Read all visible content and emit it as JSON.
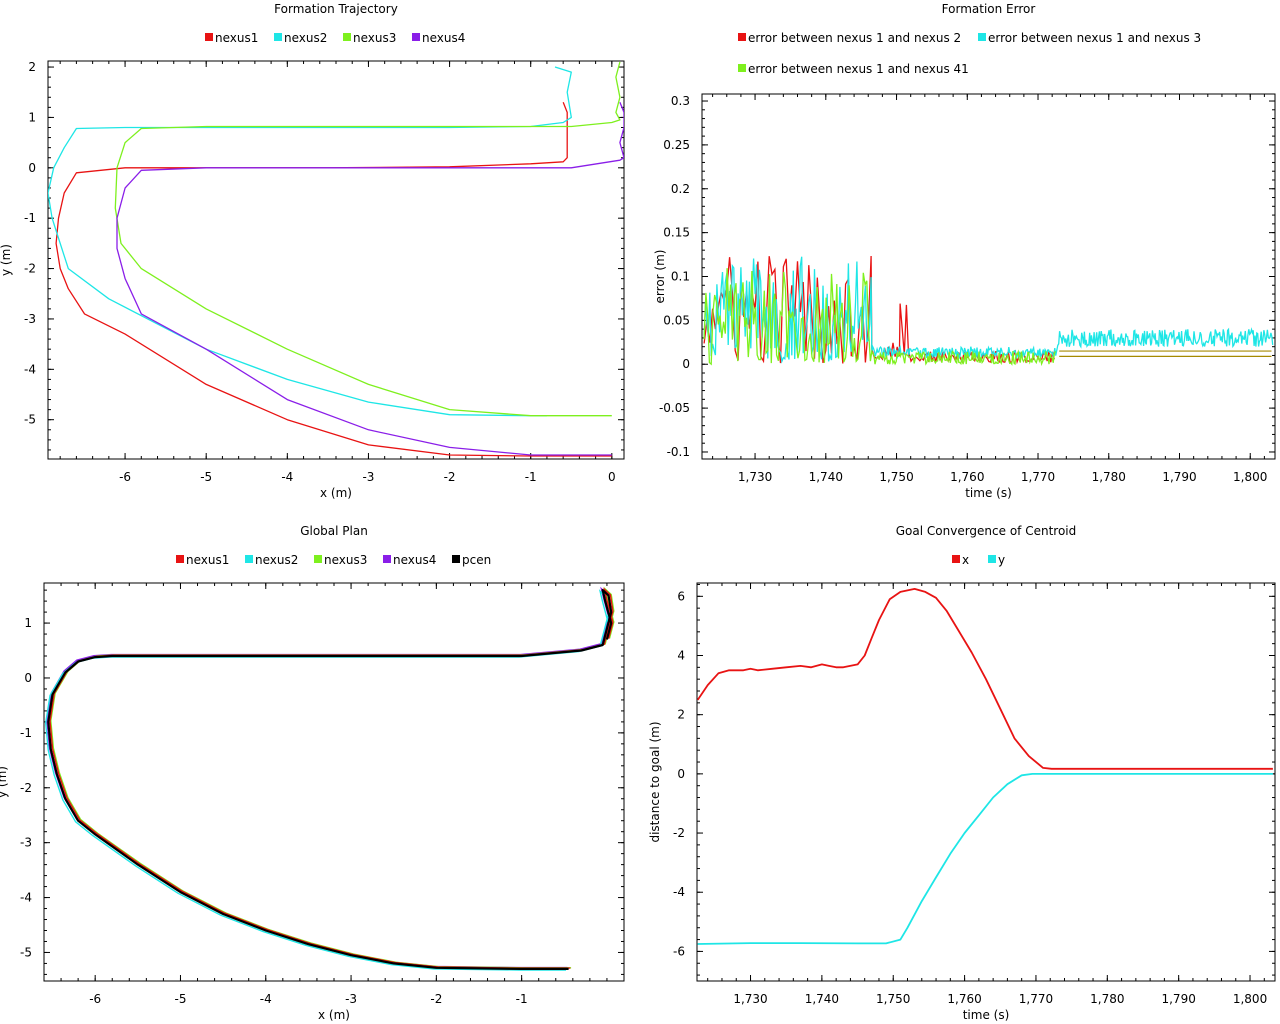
{
  "colors": {
    "nexus1": "#e81313",
    "nexus2": "#1ee6e6",
    "nexus3": "#7ef01e",
    "nexus4": "#8a1ee8",
    "pcen": "#000000",
    "olive": "#a68a00"
  },
  "chart_data": [
    {
      "id": "trajectory",
      "type": "line",
      "title": "Formation Trajectory",
      "xlabel": "x (m)",
      "ylabel": "y (m)",
      "xlim": [
        -6.95,
        0.15
      ],
      "ylim": [
        -5.78,
        2.12
      ],
      "xticks": [
        -6,
        -5,
        -4,
        -3,
        -2,
        -1,
        0
      ],
      "yticks": [
        2,
        1,
        0,
        -1,
        -2,
        -3,
        -4,
        -5
      ],
      "legend_position": "top-center",
      "series": [
        {
          "name": "nexus1",
          "color": "#e81313",
          "x": [
            -0.6,
            -0.55,
            -0.55,
            -0.6,
            -1.0,
            -2.0,
            -3.5,
            -5.0,
            -6.0,
            -6.6,
            -6.75,
            -6.82,
            -6.85,
            -6.8,
            -6.7,
            -6.5,
            -6.0,
            -5.0,
            -4.0,
            -3.0,
            -2.0,
            -1.0,
            0.0
          ],
          "y": [
            1.3,
            1.1,
            0.2,
            0.12,
            0.08,
            0.02,
            0.0,
            0.0,
            0.0,
            -0.1,
            -0.5,
            -1.0,
            -1.5,
            -2.0,
            -2.4,
            -2.9,
            -3.3,
            -4.3,
            -5.0,
            -5.5,
            -5.7,
            -5.72,
            -5.72
          ]
        },
        {
          "name": "nexus2",
          "color": "#1ee6e6",
          "x": [
            -0.7,
            -0.5,
            -0.55,
            -0.5,
            -0.6,
            -1.0,
            -2.0,
            -3.0,
            -4.0,
            -5.0,
            -6.0,
            -6.6,
            -6.75,
            -6.88,
            -6.95,
            -6.9,
            -6.7,
            -6.2,
            -5.0,
            -4.0,
            -3.0,
            -2.0,
            -1.0,
            -0.8
          ],
          "y": [
            2.0,
            1.9,
            1.5,
            1.0,
            0.9,
            0.82,
            0.8,
            0.8,
            0.8,
            0.8,
            0.8,
            0.78,
            0.4,
            0.0,
            -0.5,
            -1.0,
            -2.0,
            -2.6,
            -3.6,
            -4.2,
            -4.65,
            -4.9,
            -4.92,
            -4.92
          ]
        },
        {
          "name": "nexus3",
          "color": "#7ef01e",
          "x": [
            0.1,
            0.05,
            0.1,
            0.05,
            0.1,
            0.0,
            -0.5,
            -1.0,
            -2.0,
            -3.0,
            -4.0,
            -5.0,
            -5.8,
            -6.0,
            -6.1,
            -6.12,
            -6.05,
            -5.8,
            -5.0,
            -4.0,
            -3.0,
            -2.0,
            -1.0,
            0.0
          ],
          "y": [
            2.1,
            1.8,
            1.4,
            1.1,
            0.95,
            0.9,
            0.82,
            0.82,
            0.82,
            0.82,
            0.82,
            0.82,
            0.78,
            0.5,
            0.0,
            -0.8,
            -1.5,
            -2.0,
            -2.8,
            -3.6,
            -4.3,
            -4.8,
            -4.92,
            -4.92
          ]
        },
        {
          "name": "nexus4",
          "color": "#8a1ee8",
          "x": [
            0.1,
            0.15,
            0.15,
            0.1,
            0.15,
            0.1,
            -0.5,
            -1.0,
            -2.0,
            -3.0,
            -4.0,
            -5.0,
            -5.8,
            -6.0,
            -6.1,
            -6.1,
            -6.0,
            -5.8,
            -5.0,
            -4.0,
            -3.0,
            -2.0,
            -1.0,
            0.0
          ],
          "y": [
            1.3,
            1.1,
            0.8,
            0.5,
            0.2,
            0.15,
            0.0,
            0.0,
            0.0,
            0.0,
            0.0,
            0.0,
            -0.05,
            -0.4,
            -1.0,
            -1.6,
            -2.2,
            -2.9,
            -3.6,
            -4.6,
            -5.2,
            -5.55,
            -5.7,
            -5.7
          ]
        }
      ]
    },
    {
      "id": "error",
      "type": "line",
      "title": "Formation Error",
      "xlabel": "time (s)",
      "ylabel": "error (m)",
      "xlim": [
        1722.5,
        1803.5
      ],
      "ylim": [
        -0.108,
        0.308
      ],
      "xticks": [
        1730,
        1740,
        1750,
        1760,
        1770,
        1780,
        1790,
        1800
      ],
      "xtick_labels": [
        "1,730",
        "1,740",
        "1,750",
        "1,760",
        "1,770",
        "1,780",
        "1,790",
        "1,800"
      ],
      "yticks": [
        0.3,
        0.25,
        0.2,
        0.15,
        0.1,
        0.05,
        0,
        -0.05,
        -0.1
      ],
      "ytick_labels": [
        "0.3",
        "0.25",
        "0.2",
        "0.15",
        "0.1",
        "0.05",
        "0",
        "-0.05",
        "-0.1"
      ],
      "legend_position": "top",
      "series": [
        {
          "name": "error between nexus 1 and nexus 2",
          "color": "#e81313",
          "segments": [
            {
              "x_range": [
                1722.8,
                1746.5
              ],
              "low": 0.0,
              "high": 0.128,
              "period": 0.8
            },
            {
              "x_range": [
                1746.5,
                1750.5
              ],
              "low": 0.005,
              "high": 0.025,
              "period": 0.6
            },
            {
              "x_range": [
                1750.5,
                1751.8
              ],
              "low": 0.005,
              "high": 0.085,
              "period": 0.6
            },
            {
              "x_range": [
                1751.8,
                1772.5
              ],
              "low": 0.002,
              "high": 0.015,
              "period": 0.5
            }
          ],
          "tail": {
            "x_range": [
              1773,
              1803
            ],
            "value": 0.015
          }
        },
        {
          "name": "error between nexus 1 and nexus 3",
          "color": "#1ee6e6",
          "segments": [
            {
              "x_range": [
                1722.8,
                1746.5
              ],
              "low": 0.003,
              "high": 0.125,
              "period": 0.4
            },
            {
              "x_range": [
                1746.5,
                1772.5
              ],
              "low": 0.008,
              "high": 0.02,
              "period": 0.25
            },
            {
              "x_range": [
                1772.8,
                1803.2
              ],
              "low": 0.02,
              "high": 0.04,
              "period": 0.25
            }
          ]
        },
        {
          "name": "error between nexus 1 and nexus 41",
          "color": "#7ef01e",
          "segments": [
            {
              "x_range": [
                1722.8,
                1746.5
              ],
              "low": 0.0,
              "high": 0.11,
              "period": 0.5
            },
            {
              "x_range": [
                1746.5,
                1772.5
              ],
              "low": 0.0,
              "high": 0.015,
              "period": 0.3
            }
          ],
          "tail": {
            "x_range": [
              1773,
              1803
            ],
            "value": 0.009
          }
        }
      ]
    },
    {
      "id": "plan",
      "type": "line",
      "title": "Global Plan",
      "xlabel": "x (m)",
      "ylabel": "y (m)",
      "xlim": [
        -6.6,
        0.2
      ],
      "ylim": [
        -5.52,
        1.73
      ],
      "xticks": [
        -6,
        -5,
        -4,
        -3,
        -2,
        -1
      ],
      "yticks": [
        1,
        0,
        -1,
        -2,
        -3,
        -4,
        -5
      ],
      "legend_position": "top-center",
      "series": [
        {
          "name": "nexus1",
          "color": "#e81313"
        },
        {
          "name": "nexus2",
          "color": "#1ee6e6"
        },
        {
          "name": "nexus3",
          "color": "#7ef01e"
        },
        {
          "name": "nexus4",
          "color": "#8a1ee8"
        },
        {
          "name": "pcen",
          "color": "#000000",
          "x": [
            -0.45,
            -1.0,
            -2.0,
            -2.5,
            -3.0,
            -3.5,
            -4.0,
            -4.5,
            -5.0,
            -5.5,
            -6.0,
            -6.2,
            -6.35,
            -6.45,
            -6.52,
            -6.55,
            -6.5,
            -6.35,
            -6.2,
            -6.0,
            -5.8,
            -5.0,
            -4.0,
            -3.0,
            -2.0,
            -1.0,
            -0.3,
            -0.05,
            0.0,
            0.05,
            0.02,
            -0.05,
            -0.02,
            0.05,
            0.0
          ],
          "y": [
            -5.3,
            -5.3,
            -5.28,
            -5.2,
            -5.05,
            -4.85,
            -4.6,
            -4.3,
            -3.9,
            -3.4,
            -2.85,
            -2.6,
            -2.2,
            -1.75,
            -1.3,
            -0.8,
            -0.3,
            0.1,
            0.3,
            0.38,
            0.4,
            0.4,
            0.4,
            0.4,
            0.4,
            0.4,
            0.5,
            0.6,
            0.9,
            1.2,
            1.5,
            1.6,
            1.4,
            1.0,
            0.7
          ]
        }
      ]
    },
    {
      "id": "convergence",
      "type": "line",
      "title": "Goal Convergence of Centroid",
      "xlabel": "time (s)",
      "ylabel": "distance to goal (m)",
      "xlim": [
        1722.5,
        1803.5
      ],
      "ylim": [
        -7.0,
        6.45
      ],
      "xticks": [
        1730,
        1740,
        1750,
        1760,
        1770,
        1780,
        1790,
        1800
      ],
      "xtick_labels": [
        "1,730",
        "1,740",
        "1,750",
        "1,760",
        "1,770",
        "1,780",
        "1,790",
        "1,800"
      ],
      "yticks": [
        6,
        4,
        2,
        0,
        -2,
        -4,
        -6
      ],
      "legend_position": "top-center",
      "series": [
        {
          "name": "x",
          "color": "#e81313",
          "x": [
            1722.6,
            1724,
            1725.5,
            1727,
            1729,
            1730,
            1731,
            1733,
            1735,
            1737,
            1738.5,
            1740,
            1741,
            1742,
            1743,
            1745,
            1746,
            1747,
            1748,
            1749.5,
            1751,
            1753,
            1754.5,
            1756,
            1757.5,
            1759,
            1761,
            1763,
            1765,
            1767,
            1769,
            1771,
            1772.2,
            1773,
            1780,
            1790,
            1803.2
          ],
          "y": [
            2.5,
            3.0,
            3.4,
            3.5,
            3.5,
            3.55,
            3.5,
            3.55,
            3.6,
            3.65,
            3.6,
            3.7,
            3.65,
            3.6,
            3.6,
            3.7,
            4.0,
            4.6,
            5.2,
            5.9,
            6.15,
            6.25,
            6.15,
            5.95,
            5.5,
            4.9,
            4.1,
            3.2,
            2.2,
            1.2,
            0.6,
            0.2,
            0.17,
            0.17,
            0.17,
            0.17,
            0.17
          ]
        },
        {
          "name": "y",
          "color": "#1ee6e6",
          "x": [
            1722.6,
            1730,
            1737,
            1745,
            1749,
            1751,
            1752,
            1754,
            1756,
            1758,
            1760,
            1762,
            1764,
            1766,
            1768,
            1769.5,
            1771,
            1780,
            1790,
            1803.2
          ],
          "y": [
            -5.75,
            -5.72,
            -5.72,
            -5.73,
            -5.73,
            -5.6,
            -5.2,
            -4.3,
            -3.5,
            -2.7,
            -2.0,
            -1.4,
            -0.8,
            -0.35,
            -0.05,
            0.0,
            0.0,
            0.0,
            0.0,
            0.0
          ]
        }
      ]
    }
  ]
}
